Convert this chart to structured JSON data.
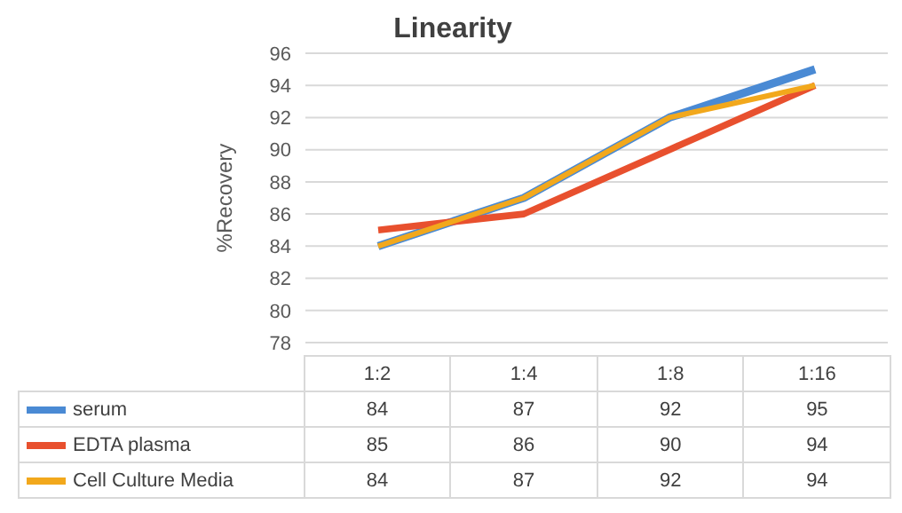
{
  "chart_data": {
    "type": "line",
    "title": "Linearity",
    "ylabel": "%Recovery",
    "categories": [
      "1:2",
      "1:4",
      "1:8",
      "1:16"
    ],
    "series": [
      {
        "name": "serum",
        "color": "#4a8ad4",
        "values": [
          84,
          87,
          92,
          95
        ]
      },
      {
        "name": "EDTA plasma",
        "color": "#e8502e",
        "values": [
          85,
          86,
          90,
          94
        ]
      },
      {
        "name": "Cell Culture Media",
        "color": "#f2a81c",
        "values": [
          84,
          87,
          92,
          94
        ]
      }
    ],
    "ylim": [
      78,
      96
    ],
    "yticks": [
      78,
      80,
      82,
      84,
      86,
      88,
      90,
      92,
      94,
      96
    ],
    "grid": "y",
    "legend": "bottom",
    "data_labels": true,
    "marker": "none",
    "line_style": "solid"
  }
}
